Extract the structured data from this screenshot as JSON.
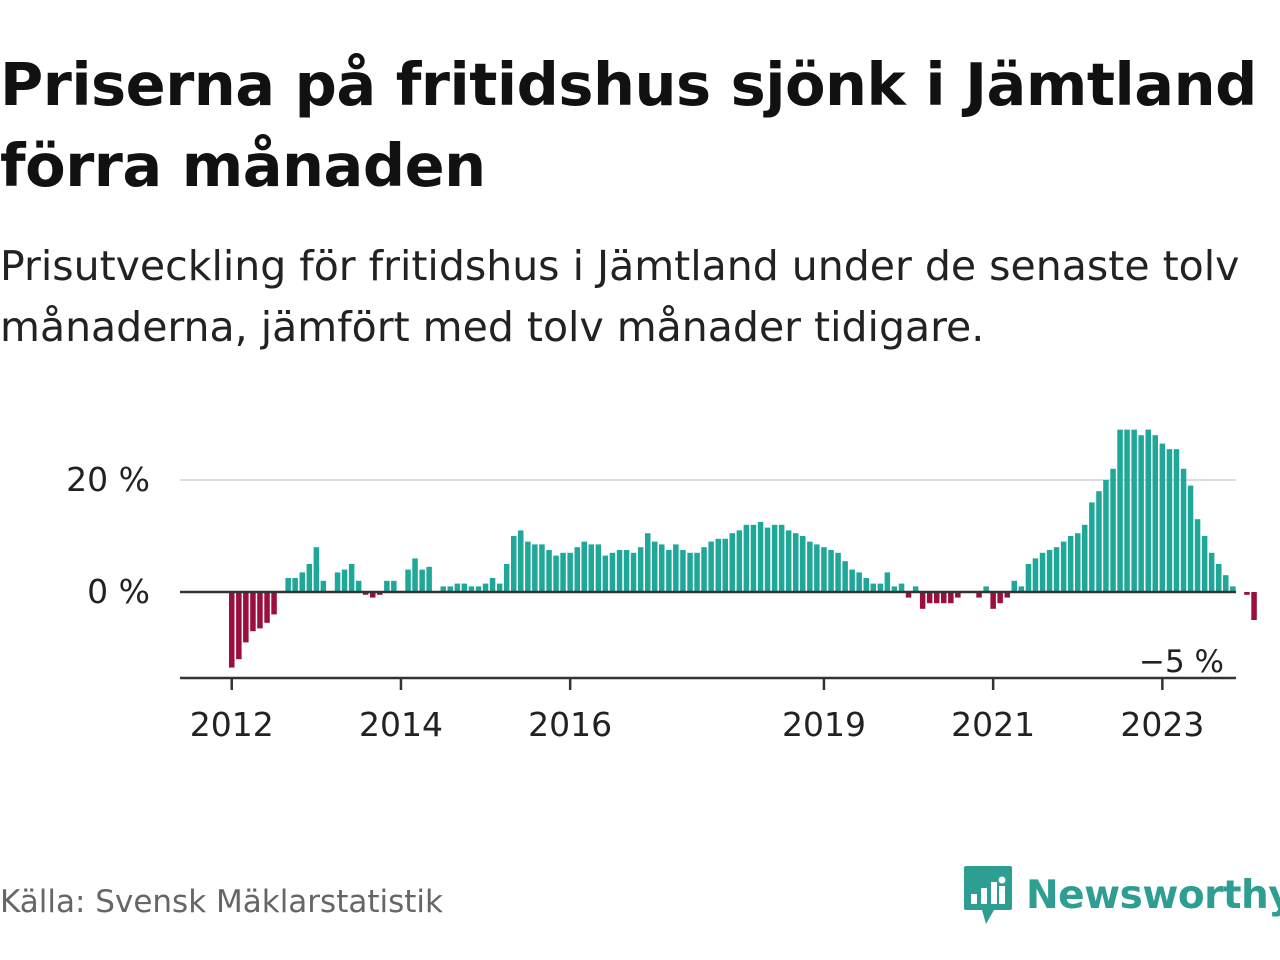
{
  "title": "Priserna på fritidshus sjönk i Jämtland förra månaden",
  "subtitle": "Prisutveckling för fritidshus i Jämtland under de senaste tolv månaderna, jämfört med tolv månader tidigare.",
  "source": "Källa: Svensk Mäklarstatistik",
  "brand": "Newsworthy",
  "colors": {
    "positive": "#1fa79a",
    "negative": "#9b0e3d",
    "brand": "#2f9e92",
    "grid": "#dddddd",
    "axis": "#333333"
  },
  "chart_data": {
    "type": "bar",
    "start": "2012-01",
    "frequency": "monthly",
    "ylim": [
      -15,
      30
    ],
    "yticks": [
      {
        "value": 0,
        "label": "0 %"
      },
      {
        "value": 20,
        "label": "20 %"
      }
    ],
    "xticks": [
      {
        "date": "2012-01",
        "label": "2012"
      },
      {
        "date": "2014-01",
        "label": "2014"
      },
      {
        "date": "2016-01",
        "label": "2016"
      },
      {
        "date": "2019-01",
        "label": "2019"
      },
      {
        "date": "2021-01",
        "label": "2021"
      },
      {
        "date": "2023-01",
        "label": "2023"
      }
    ],
    "annotation": {
      "label": "−5 %"
    },
    "values": [
      -13.5,
      -12,
      -9,
      -7,
      -6.5,
      -5.5,
      -4,
      0,
      2.5,
      2.5,
      3.5,
      5,
      8,
      2,
      0,
      3.5,
      4,
      5,
      2,
      -0.5,
      -1,
      -0.5,
      2,
      2,
      0,
      4,
      6,
      4,
      4.5,
      0,
      1,
      1,
      1.5,
      1.5,
      1,
      1,
      1.5,
      2.5,
      1.5,
      5,
      10,
      11,
      9,
      8.5,
      8.5,
      7.5,
      6.5,
      7,
      7,
      8,
      9,
      8.5,
      8.5,
      6.5,
      7,
      7.5,
      7.5,
      7,
      8,
      10.5,
      9,
      8.5,
      7.5,
      8.5,
      7.5,
      7,
      7,
      8,
      9,
      9.5,
      9.5,
      10.5,
      11,
      12,
      12,
      12.5,
      11.5,
      12,
      12,
      11,
      10.5,
      10,
      9,
      8.5,
      8,
      7.5,
      7,
      5.5,
      4,
      3.5,
      2.5,
      1.5,
      1.5,
      3.5,
      1,
      1.5,
      -1,
      1,
      -3,
      -2,
      -2,
      -2,
      -2,
      -1,
      0,
      0,
      -1,
      1,
      -3,
      -2,
      -1,
      2,
      1,
      5,
      6,
      7,
      7.5,
      8,
      9,
      10,
      10.5,
      12,
      16,
      18,
      20,
      22,
      29,
      29,
      29,
      28,
      29,
      28,
      26.5,
      25.5,
      25.5,
      22,
      19,
      13,
      10,
      7,
      5,
      3,
      1,
      0,
      -0.5,
      -5
    ]
  }
}
